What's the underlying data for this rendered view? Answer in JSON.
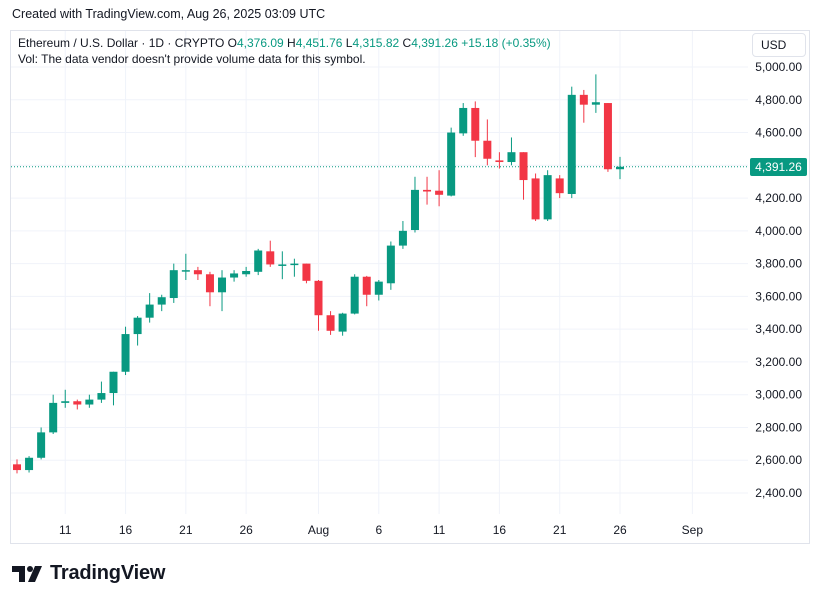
{
  "header": {
    "created_text": "Created with TradingView.com, Aug 26, 2025 03:09 UTC"
  },
  "legend": {
    "symbol_text": "Ethereum / U.S. Dollar · 1D · CRYPTO",
    "open_label": "O",
    "open_value": "4,376.09",
    "high_label": "H",
    "high_value": "4,451.76",
    "low_label": "L",
    "low_value": "4,315.82",
    "close_label": "C",
    "close_value": "4,391.26",
    "change_value": "+15.18 (+0.35%)",
    "volume_note": "Vol: The data vendor doesn't provide volume data for this symbol."
  },
  "currency_button": {
    "label": "USD"
  },
  "last_price": {
    "label": "4,391.26",
    "value": 4391.26
  },
  "footer": {
    "brand": "TradingView"
  },
  "colors": {
    "up": "#089981",
    "down": "#f23645",
    "grid": "#f0f3fa",
    "text": "#131722"
  },
  "chart_data": {
    "type": "candlestick",
    "title": "Ethereum / U.S. Dollar · 1D · CRYPTO",
    "ylim": [
      2380,
      5100
    ],
    "y_ticks": [
      2400,
      2600,
      2800,
      3000,
      3200,
      3400,
      3600,
      3800,
      4000,
      4200,
      4400,
      4600,
      4800,
      5000
    ],
    "y_tick_labels": [
      "2,400.00",
      "2,600.00",
      "2,800.00",
      "3,000.00",
      "3,200.00",
      "3,400.00",
      "3,600.00",
      "3,800.00",
      "4,000.00",
      "4,200.00",
      "4,400.00",
      "4,600.00",
      "4,800.00",
      "5,000.00"
    ],
    "x_ticks": [
      {
        "index": 4,
        "label": "11"
      },
      {
        "index": 9,
        "label": "16"
      },
      {
        "index": 14,
        "label": "21"
      },
      {
        "index": 19,
        "label": "26"
      },
      {
        "index": 25,
        "label": "Aug"
      },
      {
        "index": 30,
        "label": "6"
      },
      {
        "index": 35,
        "label": "11"
      },
      {
        "index": 40,
        "label": "16"
      },
      {
        "index": 45,
        "label": "21"
      },
      {
        "index": 50,
        "label": "26"
      },
      {
        "index": 56,
        "label": "Sep"
      }
    ],
    "candles": [
      {
        "date": "Jul 7",
        "o": 2575,
        "h": 2605,
        "l": 2520,
        "c": 2540
      },
      {
        "date": "Jul 8",
        "o": 2540,
        "h": 2625,
        "l": 2525,
        "c": 2615
      },
      {
        "date": "Jul 9",
        "o": 2615,
        "h": 2800,
        "l": 2605,
        "c": 2770
      },
      {
        "date": "Jul 10",
        "o": 2770,
        "h": 3000,
        "l": 2760,
        "c": 2950
      },
      {
        "date": "Jul 11",
        "o": 2950,
        "h": 3030,
        "l": 2920,
        "c": 2960
      },
      {
        "date": "Jul 12",
        "o": 2960,
        "h": 2970,
        "l": 2910,
        "c": 2940
      },
      {
        "date": "Jul 13",
        "o": 2940,
        "h": 3000,
        "l": 2920,
        "c": 2970
      },
      {
        "date": "Jul 14",
        "o": 2970,
        "h": 3080,
        "l": 2950,
        "c": 3010
      },
      {
        "date": "Jul 15",
        "o": 3010,
        "h": 3140,
        "l": 2935,
        "c": 3140
      },
      {
        "date": "Jul 16",
        "o": 3140,
        "h": 3415,
        "l": 3120,
        "c": 3370
      },
      {
        "date": "Jul 17",
        "o": 3370,
        "h": 3480,
        "l": 3300,
        "c": 3470
      },
      {
        "date": "Jul 18",
        "o": 3470,
        "h": 3620,
        "l": 3440,
        "c": 3550
      },
      {
        "date": "Jul 19",
        "o": 3550,
        "h": 3610,
        "l": 3510,
        "c": 3595
      },
      {
        "date": "Jul 20",
        "o": 3590,
        "h": 3800,
        "l": 3560,
        "c": 3760
      },
      {
        "date": "Jul 21",
        "o": 3760,
        "h": 3860,
        "l": 3700,
        "c": 3760
      },
      {
        "date": "Jul 22",
        "o": 3760,
        "h": 3780,
        "l": 3700,
        "c": 3735
      },
      {
        "date": "Jul 23",
        "o": 3735,
        "h": 3750,
        "l": 3540,
        "c": 3625
      },
      {
        "date": "Jul 24",
        "o": 3625,
        "h": 3760,
        "l": 3510,
        "c": 3715
      },
      {
        "date": "Jul 25",
        "o": 3715,
        "h": 3760,
        "l": 3690,
        "c": 3740
      },
      {
        "date": "Jul 26",
        "o": 3735,
        "h": 3780,
        "l": 3720,
        "c": 3755
      },
      {
        "date": "Jul 27",
        "o": 3750,
        "h": 3890,
        "l": 3730,
        "c": 3880
      },
      {
        "date": "Jul 28",
        "o": 3875,
        "h": 3940,
        "l": 3780,
        "c": 3795
      },
      {
        "date": "Jul 29",
        "o": 3795,
        "h": 3875,
        "l": 3705,
        "c": 3795
      },
      {
        "date": "Jul 30",
        "o": 3795,
        "h": 3830,
        "l": 3720,
        "c": 3800
      },
      {
        "date": "Jul 31",
        "o": 3800,
        "h": 3800,
        "l": 3680,
        "c": 3695
      },
      {
        "date": "Aug 1",
        "o": 3695,
        "h": 3700,
        "l": 3390,
        "c": 3485
      },
      {
        "date": "Aug 2",
        "o": 3485,
        "h": 3510,
        "l": 3365,
        "c": 3390
      },
      {
        "date": "Aug 3",
        "o": 3385,
        "h": 3500,
        "l": 3360,
        "c": 3495
      },
      {
        "date": "Aug 4",
        "o": 3495,
        "h": 3735,
        "l": 3490,
        "c": 3720
      },
      {
        "date": "Aug 5",
        "o": 3720,
        "h": 3725,
        "l": 3540,
        "c": 3610
      },
      {
        "date": "Aug 6",
        "o": 3610,
        "h": 3700,
        "l": 3575,
        "c": 3690
      },
      {
        "date": "Aug 7",
        "o": 3680,
        "h": 3935,
        "l": 3640,
        "c": 3910
      },
      {
        "date": "Aug 8",
        "o": 3910,
        "h": 4060,
        "l": 3890,
        "c": 4000
      },
      {
        "date": "Aug 9",
        "o": 4005,
        "h": 4330,
        "l": 3990,
        "c": 4250
      },
      {
        "date": "Aug 10",
        "o": 4250,
        "h": 4330,
        "l": 4160,
        "c": 4240
      },
      {
        "date": "Aug 11",
        "o": 4245,
        "h": 4370,
        "l": 4150,
        "c": 4220
      },
      {
        "date": "Aug 12",
        "o": 4215,
        "h": 4630,
        "l": 4210,
        "c": 4600
      },
      {
        "date": "Aug 13",
        "o": 4595,
        "h": 4780,
        "l": 4580,
        "c": 4750
      },
      {
        "date": "Aug 14",
        "o": 4750,
        "h": 4790,
        "l": 4450,
        "c": 4550
      },
      {
        "date": "Aug 15",
        "o": 4550,
        "h": 4680,
        "l": 4400,
        "c": 4440
      },
      {
        "date": "Aug 16",
        "o": 4430,
        "h": 4480,
        "l": 4380,
        "c": 4420
      },
      {
        "date": "Aug 17",
        "o": 4420,
        "h": 4570,
        "l": 4400,
        "c": 4480
      },
      {
        "date": "Aug 18",
        "o": 4480,
        "h": 4480,
        "l": 4190,
        "c": 4310
      },
      {
        "date": "Aug 19",
        "o": 4320,
        "h": 4350,
        "l": 4060,
        "c": 4070
      },
      {
        "date": "Aug 20",
        "o": 4070,
        "h": 4370,
        "l": 4060,
        "c": 4340
      },
      {
        "date": "Aug 21",
        "o": 4320,
        "h": 4340,
        "l": 4200,
        "c": 4230
      },
      {
        "date": "Aug 22",
        "o": 4225,
        "h": 4880,
        "l": 4200,
        "c": 4830
      },
      {
        "date": "Aug 23",
        "o": 4830,
        "h": 4860,
        "l": 4660,
        "c": 4770
      },
      {
        "date": "Aug 24",
        "o": 4770,
        "h": 4955,
        "l": 4720,
        "c": 4785
      },
      {
        "date": "Aug 25",
        "o": 4780,
        "h": 4780,
        "l": 4360,
        "c": 4376
      },
      {
        "date": "Aug 26",
        "o": 4376.09,
        "h": 4451.76,
        "l": 4315.82,
        "c": 4391.26
      }
    ]
  }
}
